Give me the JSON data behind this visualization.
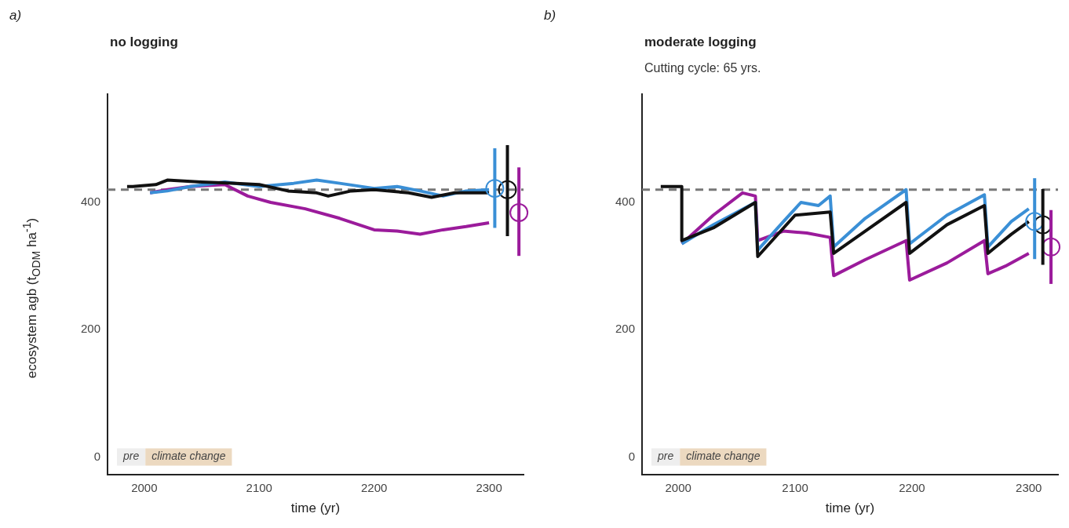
{
  "chart_data": [
    {
      "type": "line",
      "title": "no logging",
      "xlabel": "time (yr)",
      "ylabel": "ecosystem agb (t$_{ODM}$ ha$^{-1}$)",
      "annotations": [
        "a)",
        "pre",
        "climate change"
      ],
      "xlim": [
        1968,
        2330
      ],
      "xticks": [
        2000,
        2100,
        2200,
        2300
      ],
      "ylim": [
        -27,
        570
      ],
      "yticks": [
        0,
        200,
        400
      ],
      "grid": false,
      "legend": false,
      "marker": "none",
      "line_style": "solid",
      "ref_lines": [
        {
          "axis": "y",
          "value": 420,
          "label": null,
          "color": "#777777",
          "line_style": "dashed"
        }
      ],
      "series": [
        {
          "color": "#111111",
          "x": [
            1985,
            1990,
            2010,
            2020,
            2050,
            2080,
            2100,
            2125,
            2150,
            2160,
            2180,
            2200,
            2230,
            2250,
            2270,
            2300
          ],
          "values": [
            425,
            425,
            428,
            435,
            432,
            430,
            428,
            418,
            415,
            410,
            418,
            420,
            415,
            408,
            415,
            415
          ]
        },
        {
          "color": "#3a8fd6",
          "x": [
            2005,
            2020,
            2040,
            2070,
            2100,
            2130,
            2150,
            2170,
            2200,
            2220,
            2240,
            2260,
            2280,
            2300
          ],
          "values": [
            415,
            418,
            425,
            432,
            425,
            430,
            435,
            430,
            422,
            425,
            418,
            410,
            418,
            420
          ]
        },
        {
          "color": "#9b1b9b",
          "x": [
            2005,
            2020,
            2040,
            2070,
            2090,
            2110,
            2140,
            2170,
            2200,
            2220,
            2240,
            2260,
            2280,
            2300
          ],
          "values": [
            415,
            420,
            425,
            428,
            410,
            400,
            390,
            375,
            357,
            355,
            350,
            357,
            362,
            368
          ]
        },
        {
          "type": "scatter",
          "marker": "circle",
          "color": "#3a8fd6",
          "x": [
            2305
          ],
          "values": [
            422
          ],
          "errors": [
            [
              360,
              485
            ]
          ]
        },
        {
          "type": "scatter",
          "marker": "circle",
          "color": "#111111",
          "x": [
            2316
          ],
          "values": [
            420
          ],
          "errors": [
            [
              347,
              490
            ]
          ]
        },
        {
          "type": "scatter",
          "marker": "circle",
          "color": "#9b1b9b",
          "x": [
            2326
          ],
          "values": [
            384
          ],
          "errors": [
            [
              316,
              455
            ]
          ]
        }
      ]
    },
    {
      "type": "line",
      "title": "moderate logging",
      "subtitle": "Cutting cycle: 65 yrs.",
      "xlabel": "time (yr)",
      "annotations": [
        "b)",
        "pre",
        "climate change"
      ],
      "xlim": [
        1969,
        2325
      ],
      "xticks": [
        2000,
        2100,
        2200,
        2300
      ],
      "ylim": [
        -27,
        570
      ],
      "yticks": [
        0,
        200,
        400
      ],
      "grid": false,
      "legend": false,
      "marker": "none",
      "line_style": "solid",
      "ref_lines": [
        {
          "axis": "y",
          "value": 420,
          "label": null,
          "color": "#777777",
          "line_style": "dashed"
        }
      ],
      "series": [
        {
          "color": "#111111",
          "x": [
            1985,
            2003,
            2003,
            2030,
            2066,
            2068,
            2100,
            2130,
            2133,
            2160,
            2195,
            2198,
            2230,
            2262,
            2265,
            2285,
            2300
          ],
          "values": [
            425,
            425,
            340,
            360,
            400,
            315,
            380,
            385,
            320,
            355,
            400,
            320,
            365,
            395,
            320,
            350,
            370
          ]
        },
        {
          "color": "#3a8fd6",
          "x": [
            2003,
            2030,
            2066,
            2068,
            2090,
            2105,
            2120,
            2130,
            2133,
            2160,
            2195,
            2198,
            2230,
            2262,
            2265,
            2285,
            2300
          ],
          "values": [
            335,
            365,
            400,
            325,
            370,
            400,
            395,
            410,
            330,
            375,
            420,
            335,
            380,
            412,
            330,
            370,
            390
          ]
        },
        {
          "color": "#9b1b9b",
          "x": [
            2003,
            2030,
            2055,
            2066,
            2068,
            2090,
            2110,
            2130,
            2133,
            2160,
            2195,
            2198,
            2230,
            2262,
            2265,
            2280,
            2300
          ],
          "values": [
            335,
            380,
            415,
            410,
            340,
            355,
            352,
            345,
            285,
            310,
            340,
            278,
            305,
            340,
            288,
            300,
            320
          ]
        },
        {
          "type": "scatter",
          "marker": "circle",
          "color": "#3a8fd6",
          "x": [
            2305
          ],
          "values": [
            370
          ],
          "errors": [
            [
              311,
              438
            ]
          ]
        },
        {
          "type": "scatter",
          "marker": "circle",
          "color": "#111111",
          "x": [
            2312
          ],
          "values": [
            365
          ],
          "errors": [
            [
              302,
              421
            ]
          ]
        },
        {
          "type": "scatter",
          "marker": "circle",
          "color": "#9b1b9b",
          "x": [
            2319
          ],
          "values": [
            330
          ],
          "errors": [
            [
              272,
              388
            ]
          ]
        }
      ]
    }
  ]
}
